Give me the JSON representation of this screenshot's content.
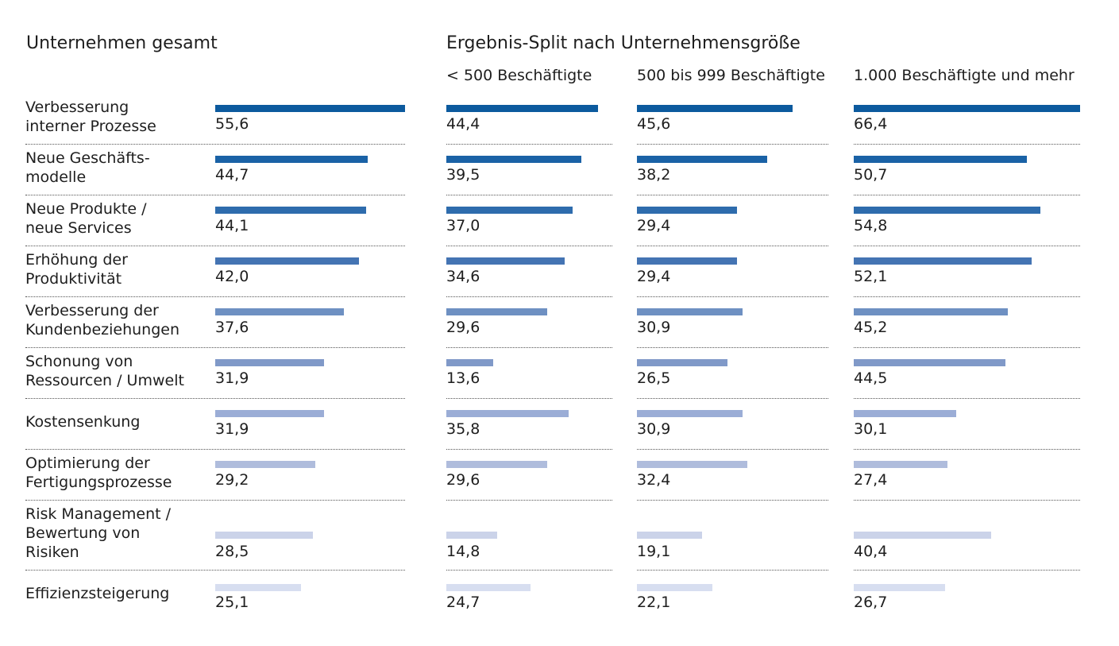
{
  "chart_data": {
    "type": "bar",
    "orientation": "horizontal",
    "section_titles": {
      "total": "Unternehmen gesamt",
      "split": "Ergebnis-Split nach Unternehmensgröße"
    },
    "categories": [
      "Verbesserung\ninterner Prozesse",
      "Neue Geschäfts-\nmodelle",
      "Neue Produkte /\nneue Services",
      "Erhöhung der\nProduktivität",
      "Verbesserung der\nKundenbeziehungen",
      "Schonung von\nRessourcen / Umwelt",
      "Kostensenkung",
      "Optimierung der\nFertigungsprozesse",
      "Risk Management /\nBewertung von\nRisiken",
      "Effizienzsteigerung"
    ],
    "series": [
      {
        "name": "Unternehmen gesamt",
        "values": [
          "55,6",
          "44,7",
          "44,1",
          "42,0",
          "37,6",
          "31,9",
          "31,9",
          "29,2",
          "28,5",
          "25,1"
        ]
      },
      {
        "name": "< 500 Beschäftigte",
        "values": [
          "44,4",
          "39,5",
          "37,0",
          "34,6",
          "29,6",
          "13,6",
          "35,8",
          "29,6",
          "14,8",
          "24,7"
        ]
      },
      {
        "name": "500 bis 999 Beschäftigte",
        "values": [
          "45,6",
          "38,2",
          "29,4",
          "29,4",
          "30,9",
          "26,5",
          "30,9",
          "32,4",
          "19,1",
          "22,1"
        ]
      },
      {
        "name": "1.000 Beschäftigte und mehr",
        "values": [
          "66,4",
          "50,7",
          "54,8",
          "52,1",
          "45,2",
          "44,5",
          "30,1",
          "27,4",
          "40,4",
          "26,7"
        ]
      }
    ],
    "colors": [
      "#0c5a9e",
      "#1a62a6",
      "#2e6cad",
      "#4474b3",
      "#6e90c2",
      "#8099c8",
      "#9badd6",
      "#afbcdc",
      "#cbd3e9",
      "#d7def0"
    ]
  }
}
